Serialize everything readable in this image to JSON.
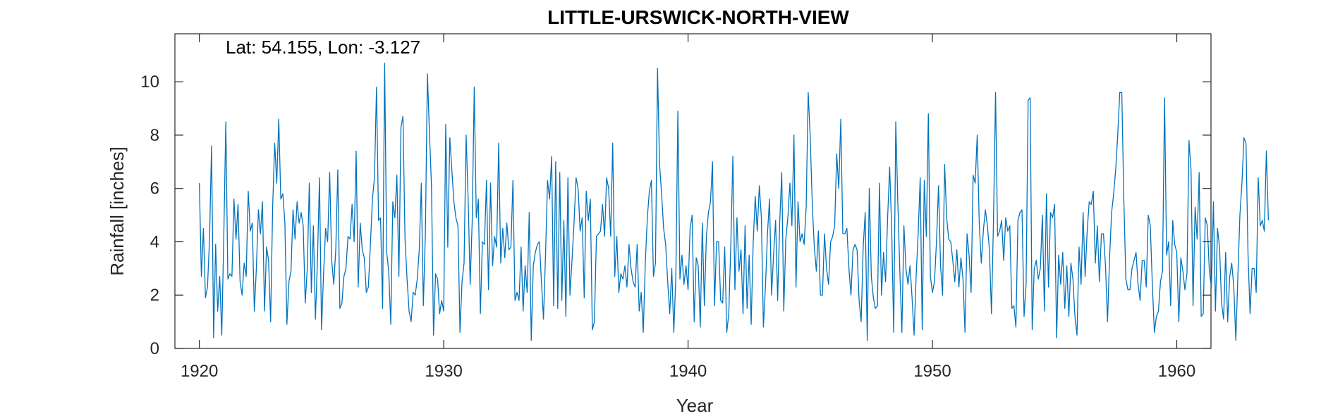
{
  "chart_data": {
    "type": "line",
    "title": "LITTLE-URSWICK-NORTH-VIEW",
    "xlabel": "Year",
    "ylabel": "Rainfall [inches]",
    "annotation": "Lat: 54.155, Lon: -3.127",
    "xlim": [
      1919,
      1961.4
    ],
    "ylim": [
      0,
      11.8
    ],
    "x_ticks": [
      1920,
      1930,
      1940,
      1950,
      1960
    ],
    "y_ticks": [
      0,
      2,
      4,
      6,
      8,
      10
    ],
    "grid": false,
    "legend": "none",
    "line_color": "#0072BD",
    "series": [
      {
        "x_start": 1920.0,
        "x_step": 0.083333,
        "values": [
          6.2,
          2.7,
          4.5,
          1.9,
          2.3,
          4.1,
          7.6,
          0.4,
          3.9,
          1.4,
          2.7,
          0.5,
          4.2,
          8.5,
          2.6,
          2.8,
          2.7,
          5.6,
          4.1,
          5.4,
          2.5,
          2.0,
          3.2,
          2.7,
          5.9,
          4.4,
          4.7,
          1.4,
          3.0,
          5.2,
          4.3,
          5.5,
          1.4,
          3.8,
          3.3,
          1.0,
          5.3,
          7.7,
          6.2,
          8.6,
          5.6,
          5.8,
          4.7,
          0.9,
          2.5,
          2.9,
          5.2,
          4.1,
          5.5,
          4.7,
          5.1,
          4.6,
          1.7,
          3.0,
          6.2,
          2.1,
          4.6,
          1.1,
          3.3,
          6.4,
          0.7,
          2.8,
          4.5,
          4.0,
          6.6,
          3.3,
          2.4,
          3.7,
          6.7,
          1.5,
          1.7,
          2.7,
          3.0,
          4.2,
          4.1,
          5.4,
          4.0,
          7.4,
          2.3,
          4.7,
          3.7,
          3.4,
          2.1,
          2.3,
          3.9,
          5.6,
          6.4,
          9.8,
          4.8,
          4.9,
          1.5,
          10.7,
          3.6,
          2.9,
          0.9,
          5.5,
          4.9,
          6.5,
          2.7,
          8.3,
          8.7,
          4.1,
          2.6,
          1.4,
          1.0,
          2.1,
          2.0,
          2.6,
          3.7,
          6.2,
          1.6,
          4.3,
          10.3,
          8.1,
          6.1,
          0.5,
          2.8,
          2.6,
          1.3,
          1.8,
          1.4,
          8.4,
          3.8,
          7.9,
          6.7,
          5.5,
          4.9,
          4.6,
          0.6,
          2.5,
          3.2,
          8.0,
          5.6,
          2.4,
          4.8,
          9.8,
          4.9,
          5.6,
          1.3,
          4.0,
          3.9,
          6.3,
          2.2,
          6.2,
          3.1,
          4.2,
          3.8,
          7.7,
          3.2,
          4.5,
          3.4,
          4.7,
          3.7,
          3.8,
          6.3,
          1.8,
          2.1,
          1.8,
          3.8,
          1.4,
          3.1,
          2.1,
          5.1,
          0.3,
          3.1,
          3.6,
          3.9,
          4.0,
          2.5,
          1.1,
          3.5,
          6.3,
          5.6,
          7.2,
          1.6,
          7.0,
          1.5,
          6.6,
          1.8,
          4.8,
          1.2,
          6.4,
          2.0,
          3.3,
          4.7,
          6.4,
          6.0,
          4.4,
          4.9,
          1.9,
          5.9,
          4.8,
          5.6,
          0.7,
          1.0,
          4.2,
          4.3,
          4.4,
          5.4,
          4.2,
          6.4,
          6.0,
          4.2,
          7.7,
          2.7,
          4.2,
          2.1,
          2.8,
          2.6,
          3.1,
          2.3,
          3.9,
          3.0,
          2.5,
          2.3,
          3.9,
          1.4,
          2.1,
          0.6,
          3.2,
          4.9,
          5.9,
          6.3,
          2.7,
          3.2,
          10.5,
          6.9,
          5.8,
          4.5,
          3.9,
          2.5,
          1.3,
          3.0,
          0.6,
          2.7,
          8.9,
          2.6,
          3.5,
          2.4,
          3.1,
          2.2,
          4.5,
          5.0,
          1.0,
          3.4,
          3.1,
          0.8,
          4.7,
          1.6,
          4.2,
          5.1,
          5.5,
          7.0,
          1.6,
          4.0,
          4.0,
          1.8,
          1.7,
          3.8,
          0.6,
          1.3,
          3.9,
          7.2,
          2.2,
          4.9,
          2.9,
          3.7,
          1.3,
          4.6,
          1.5,
          3.5,
          0.9,
          4.0,
          5.7,
          4.4,
          6.1,
          4.9,
          0.8,
          2.3,
          4.3,
          5.6,
          2.0,
          3.5,
          4.8,
          1.8,
          4.7,
          6.6,
          1.4,
          4.1,
          4.9,
          6.2,
          4.6,
          8.0,
          2.3,
          5.5,
          4.0,
          4.3,
          3.9,
          5.3,
          9.6,
          7.9,
          5.4,
          3.8,
          2.9,
          4.4,
          2.0,
          2.0,
          4.3,
          3.0,
          2.4,
          4.0,
          4.2,
          4.6,
          7.3,
          6.0,
          8.6,
          4.3,
          4.3,
          4.5,
          3.0,
          2.0,
          3.7,
          3.9,
          3.7,
          1.8,
          1.0,
          3.8,
          5.1,
          0.3,
          6.0,
          2.7,
          1.9,
          1.5,
          1.6,
          6.2,
          2.0,
          3.6,
          2.5,
          4.9,
          6.8,
          4.5,
          0.6,
          8.5,
          5.5,
          2.9,
          0.6,
          4.6,
          3.0,
          2.4,
          3.1,
          1.9,
          0.5,
          2.7,
          4.3,
          6.4,
          0.7,
          6.3,
          4.2,
          8.8,
          2.7,
          2.1,
          2.5,
          4.0,
          6.1,
          3.1,
          2.0,
          6.9,
          4.9,
          4.1,
          4.0,
          3.3,
          2.5,
          3.7,
          2.3,
          3.4,
          2.6,
          0.6,
          4.3,
          3.5,
          2.1,
          6.5,
          6.2,
          8.0,
          4.7,
          3.2,
          4.4,
          5.2,
          4.6,
          3.7,
          1.3,
          4.8,
          9.6,
          4.2,
          4.4,
          4.8,
          3.3,
          4.9,
          4.4,
          4.6,
          1.5,
          1.6,
          0.8,
          4.8,
          5.1,
          5.2,
          1.2,
          2.4,
          9.3,
          9.4,
          0.7,
          3.0,
          3.3,
          2.6,
          3.0,
          5.0,
          1.4,
          5.8,
          2.3,
          5.1,
          4.9,
          5.4,
          0.4,
          3.5,
          2.4,
          3.6,
          1.5,
          3.1,
          1.2,
          3.2,
          2.6,
          1.2,
          0.5,
          3.8,
          2.4,
          5.1,
          2.7,
          4.4,
          5.5,
          5.4,
          5.9,
          3.2,
          4.6,
          2.5,
          4.3,
          4.3,
          3.1,
          1.0,
          3.4,
          5.1,
          5.8,
          6.7,
          8.0,
          9.6,
          9.6,
          5.6,
          2.6,
          2.2,
          2.2,
          3.0,
          3.3,
          3.6,
          2.4,
          1.8,
          3.3,
          3.3,
          2.3,
          5.0,
          4.6,
          2.4,
          0.6,
          1.2,
          1.4,
          2.5,
          2.9,
          9.4,
          3.5,
          4.0,
          1.6,
          4.8,
          3.9,
          3.6,
          1.0,
          3.4,
          2.9,
          2.2,
          2.8,
          7.8,
          6.7,
          1.6,
          5.3,
          4.1,
          6.6,
          1.2,
          1.3,
          4.9,
          4.6,
          2.9,
          2.3,
          5.5,
          1.4,
          4.5,
          3.8,
          1.7,
          1.1,
          3.6,
          1.0,
          2.7,
          3.2,
          2.3,
          0.3,
          2.7,
          5.0,
          6.2,
          7.9,
          7.7,
          3.5,
          1.3,
          3.0,
          3.0,
          2.1,
          6.4,
          4.6,
          4.8,
          4.4,
          7.4,
          4.8
        ]
      }
    ]
  }
}
